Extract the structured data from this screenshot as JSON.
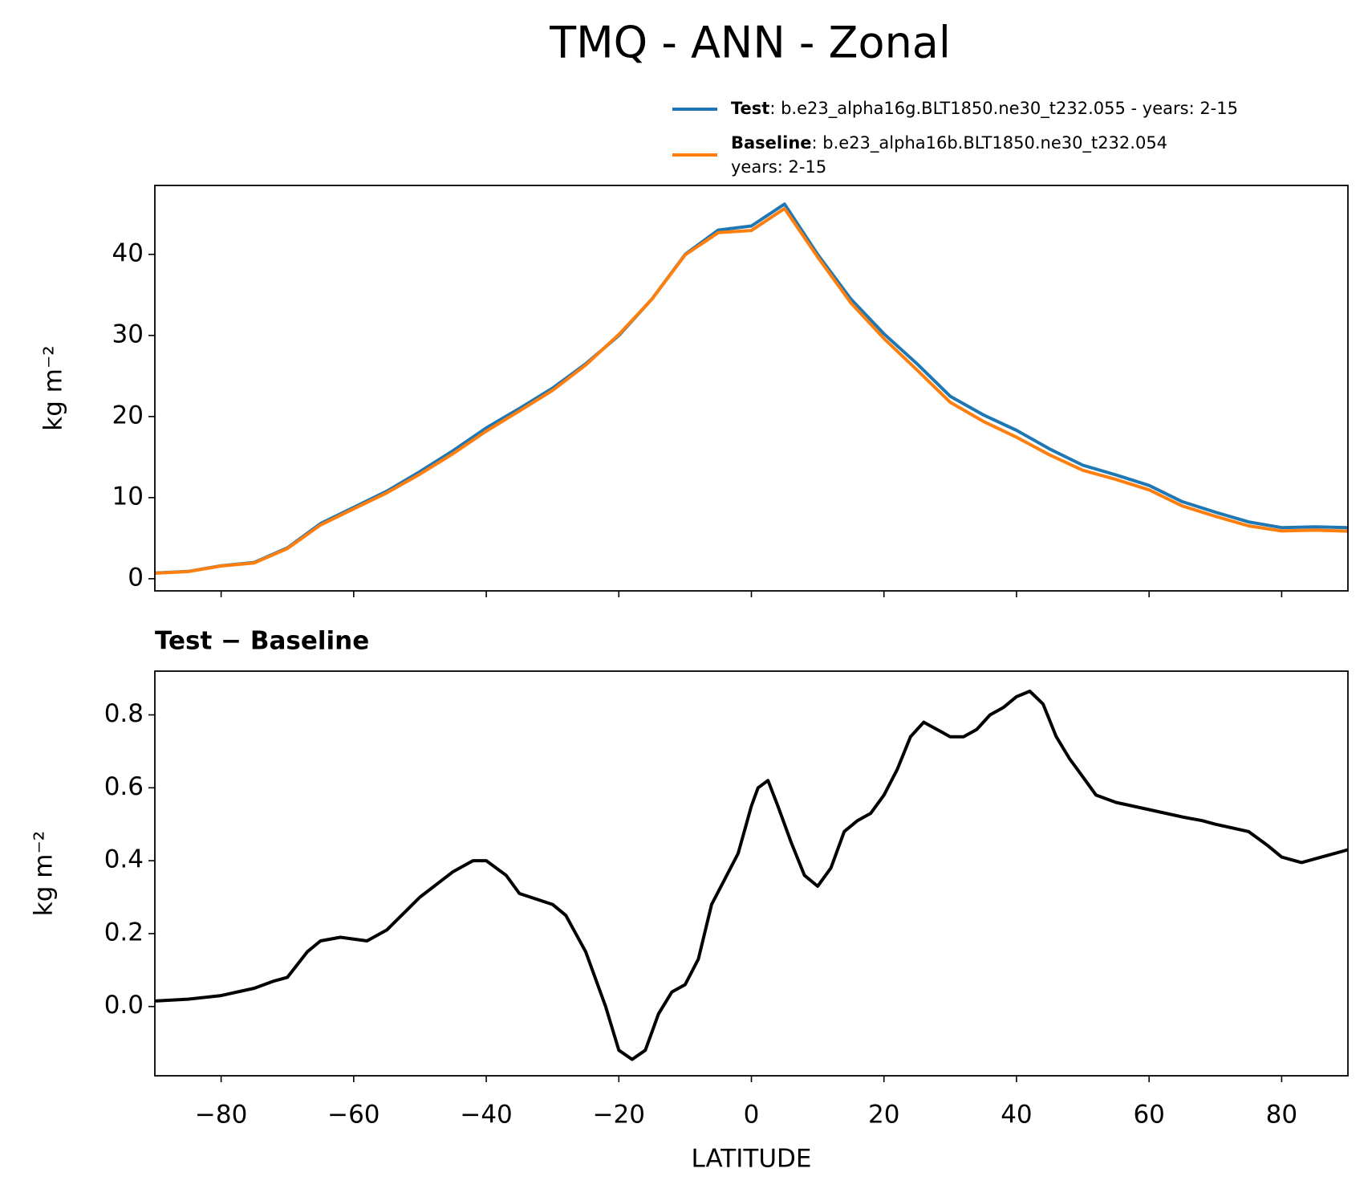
{
  "chart_data": [
    {
      "type": "line",
      "title": "TMQ - ANN - Zonal",
      "ylabel": "kg m⁻²",
      "x": [
        -90,
        -85,
        -80,
        -75,
        -70,
        -65,
        -60,
        -55,
        -50,
        -45,
        -40,
        -35,
        -30,
        -25,
        -20,
        -15,
        -10,
        -5,
        0,
        5,
        10,
        15,
        20,
        25,
        30,
        35,
        40,
        45,
        50,
        55,
        60,
        65,
        70,
        75,
        80,
        85,
        90
      ],
      "series": [
        {
          "name": "Test",
          "description": [
            ": b.e23_alpha16g.BLT1850.ne30_t232.055 - years: 2-15"
          ],
          "color": "#1f77b4",
          "values": [
            0.7,
            0.9,
            1.6,
            2.0,
            3.8,
            6.8,
            8.8,
            10.8,
            13.2,
            15.8,
            18.6,
            21.0,
            23.5,
            26.5,
            30.0,
            34.5,
            40.0,
            43.0,
            43.5,
            46.2,
            40.0,
            34.5,
            30.2,
            26.5,
            22.5,
            20.2,
            18.3,
            16.0,
            14.0,
            12.8,
            11.5,
            9.5,
            8.2,
            7.0,
            6.3,
            6.4,
            6.3
          ]
        },
        {
          "name": "Baseline",
          "description": [
            ": b.e23_alpha16b.BLT1850.ne30_t232.054",
            "years: 2-15"
          ],
          "color": "#ff7f0e",
          "values": [
            0.68,
            0.88,
            1.57,
            1.95,
            3.72,
            6.63,
            8.62,
            10.59,
            12.9,
            15.43,
            18.2,
            20.69,
            23.22,
            26.35,
            30.12,
            34.48,
            39.94,
            42.68,
            42.95,
            45.65,
            39.67,
            34.02,
            29.62,
            25.74,
            21.76,
            19.4,
            17.45,
            15.26,
            13.37,
            12.24,
            10.96,
            8.98,
            7.7,
            6.52,
            5.89,
            5.99,
            5.87
          ]
        }
      ],
      "xlim": [
        -90,
        90
      ],
      "xticks": [
        -80,
        -60,
        -40,
        -20,
        0,
        20,
        40,
        60,
        80
      ],
      "ylim": [
        -1.5,
        48.5
      ],
      "yticks": [
        0,
        10,
        20,
        30,
        40
      ]
    },
    {
      "type": "line",
      "title": "Test − Baseline",
      "ylabel": "kg m⁻²",
      "xlabel": "LATITUDE",
      "x": [
        -90,
        -85,
        -80,
        -75,
        -72,
        -70,
        -67,
        -65,
        -62,
        -58,
        -55,
        -50,
        -45,
        -42,
        -40,
        -37,
        -35,
        -30,
        -28,
        -25,
        -22,
        -20,
        -18,
        -16,
        -14,
        -12,
        -10,
        -8,
        -6,
        -4,
        -2,
        0,
        1,
        2.5,
        4,
        6,
        8,
        10,
        12,
        14,
        16,
        18,
        20,
        22,
        24,
        26,
        28,
        30,
        32,
        34,
        36,
        38,
        40,
        42,
        44,
        46,
        48,
        50,
        52,
        55,
        60,
        65,
        68,
        70,
        75,
        78,
        80,
        83,
        86,
        90
      ],
      "series": [
        {
          "name": "Test − Baseline",
          "color": "#000000",
          "values": [
            0.015,
            0.02,
            0.03,
            0.05,
            0.07,
            0.08,
            0.15,
            0.18,
            0.19,
            0.18,
            0.21,
            0.3,
            0.37,
            0.4,
            0.4,
            0.36,
            0.31,
            0.28,
            0.25,
            0.15,
            0.0,
            -0.12,
            -0.145,
            -0.12,
            -0.02,
            0.04,
            0.06,
            0.13,
            0.28,
            0.35,
            0.42,
            0.55,
            0.6,
            0.62,
            0.55,
            0.45,
            0.36,
            0.33,
            0.38,
            0.48,
            0.51,
            0.53,
            0.58,
            0.65,
            0.74,
            0.78,
            0.76,
            0.74,
            0.74,
            0.76,
            0.8,
            0.82,
            0.85,
            0.865,
            0.83,
            0.74,
            0.68,
            0.63,
            0.58,
            0.56,
            0.54,
            0.52,
            0.51,
            0.5,
            0.48,
            0.44,
            0.41,
            0.395,
            0.41,
            0.43
          ]
        }
      ],
      "xlim": [
        -90,
        90
      ],
      "xticks": [
        {
          "value": -80,
          "label": "−80"
        },
        {
          "value": -60,
          "label": "−60"
        },
        {
          "value": -40,
          "label": "−40"
        },
        {
          "value": -20,
          "label": "−20"
        },
        0,
        20,
        40,
        60,
        80
      ],
      "ylim": [
        -0.19,
        0.92
      ],
      "yticks": [
        {
          "value": 0,
          "label": "0.0"
        },
        0.2,
        0.4,
        0.6,
        0.8
      ]
    }
  ]
}
